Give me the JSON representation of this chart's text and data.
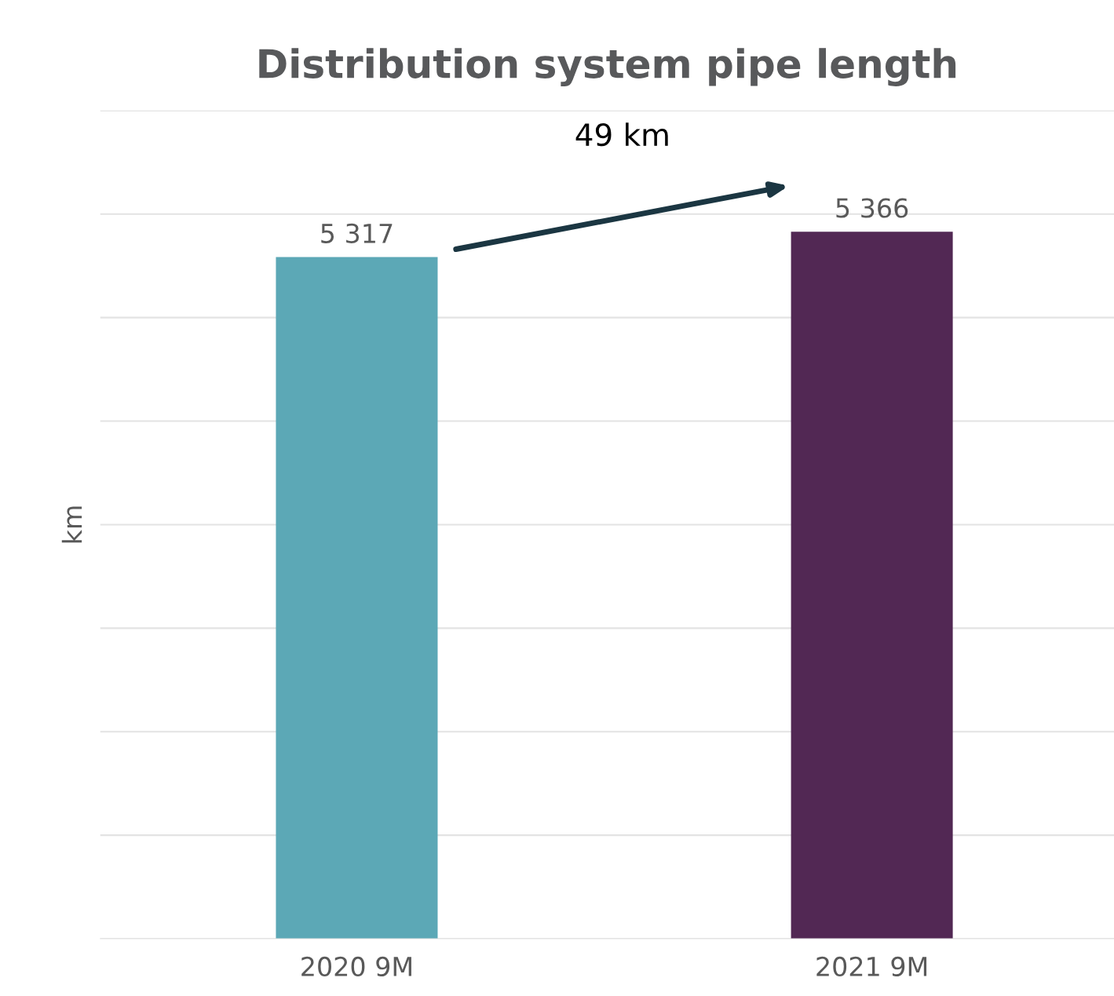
{
  "chart_data": {
    "type": "bar",
    "title": "Distribution system pipe length",
    "ylabel": "km",
    "categories": [
      "2020 9M",
      "2021 9M"
    ],
    "values": [
      5317,
      5366
    ],
    "colors": [
      "#5ca8b6",
      "#522854"
    ],
    "value_labels": [
      "5 317",
      "5 366"
    ],
    "ylim": [
      4000,
      5600
    ],
    "yticks": [
      {
        "value": 4000,
        "label": null
      },
      {
        "value": 4200,
        "label": null
      },
      {
        "value": 4400,
        "label": null
      },
      {
        "value": 4600,
        "label": null
      },
      {
        "value": 4800,
        "label": null
      },
      {
        "value": 5000,
        "label": null
      },
      {
        "value": 5200,
        "label": null
      },
      {
        "value": 5400,
        "label": null
      },
      {
        "value": 5600,
        "label": null
      }
    ],
    "grid": "y",
    "tick_labels": "x",
    "legend": false,
    "annotations": [
      "49 km"
    ]
  }
}
